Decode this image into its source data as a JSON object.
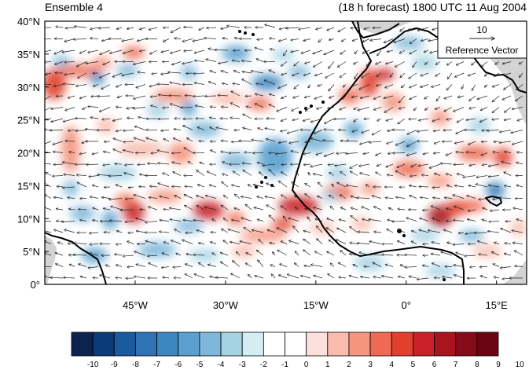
{
  "header": {
    "left_title": "Ensemble 4",
    "right_title": "(18 h forecast) 1800 UTC 11 Aug 2004"
  },
  "map": {
    "lon_range": [
      -60,
      20
    ],
    "lat_range": [
      0,
      40
    ],
    "lat_ticks": [
      {
        "value": 40,
        "label": "40°N"
      },
      {
        "value": 35,
        "label": "35°N"
      },
      {
        "value": 30,
        "label": "30°N"
      },
      {
        "value": 25,
        "label": "25°N"
      },
      {
        "value": 20,
        "label": "20°N"
      },
      {
        "value": 15,
        "label": "15°N"
      },
      {
        "value": 10,
        "label": "10°N"
      },
      {
        "value": 5,
        "label": "5°N"
      },
      {
        "value": 0,
        "label": "0°"
      }
    ],
    "lon_ticks": [
      {
        "value": -45,
        "label": "45°W"
      },
      {
        "value": -30,
        "label": "30°W"
      },
      {
        "value": -15,
        "label": "15°W"
      },
      {
        "value": 0,
        "label": "0°"
      },
      {
        "value": 15,
        "label": "15°E"
      }
    ],
    "reference_vector": {
      "magnitude_label": "10",
      "caption": "Reference Vector"
    }
  },
  "colorbar": {
    "labels": [
      "-10",
      "-9",
      "-8",
      "-7",
      "-6",
      "-5",
      "-4",
      "-3",
      "-2",
      "-1",
      "0",
      "1",
      "2",
      "3",
      "4",
      "5",
      "6",
      "7",
      "8",
      "9",
      "10"
    ],
    "colors": [
      "#0c2350",
      "#0b3a78",
      "#1c5aa0",
      "#2f73b4",
      "#3d87c0",
      "#5aa0cf",
      "#7db7d9",
      "#a6d3e4",
      "#d4ecf4",
      "#ffffff",
      "#ffffff",
      "#fde0dc",
      "#f9bbad",
      "#f59580",
      "#ee6a52",
      "#e1402f",
      "#c92127",
      "#a8151f",
      "#870c19",
      "#6b0513"
    ]
  },
  "colors": {
    "coast": "#000000",
    "land_shade": "#d3d3d3",
    "vector": "#222222"
  }
}
